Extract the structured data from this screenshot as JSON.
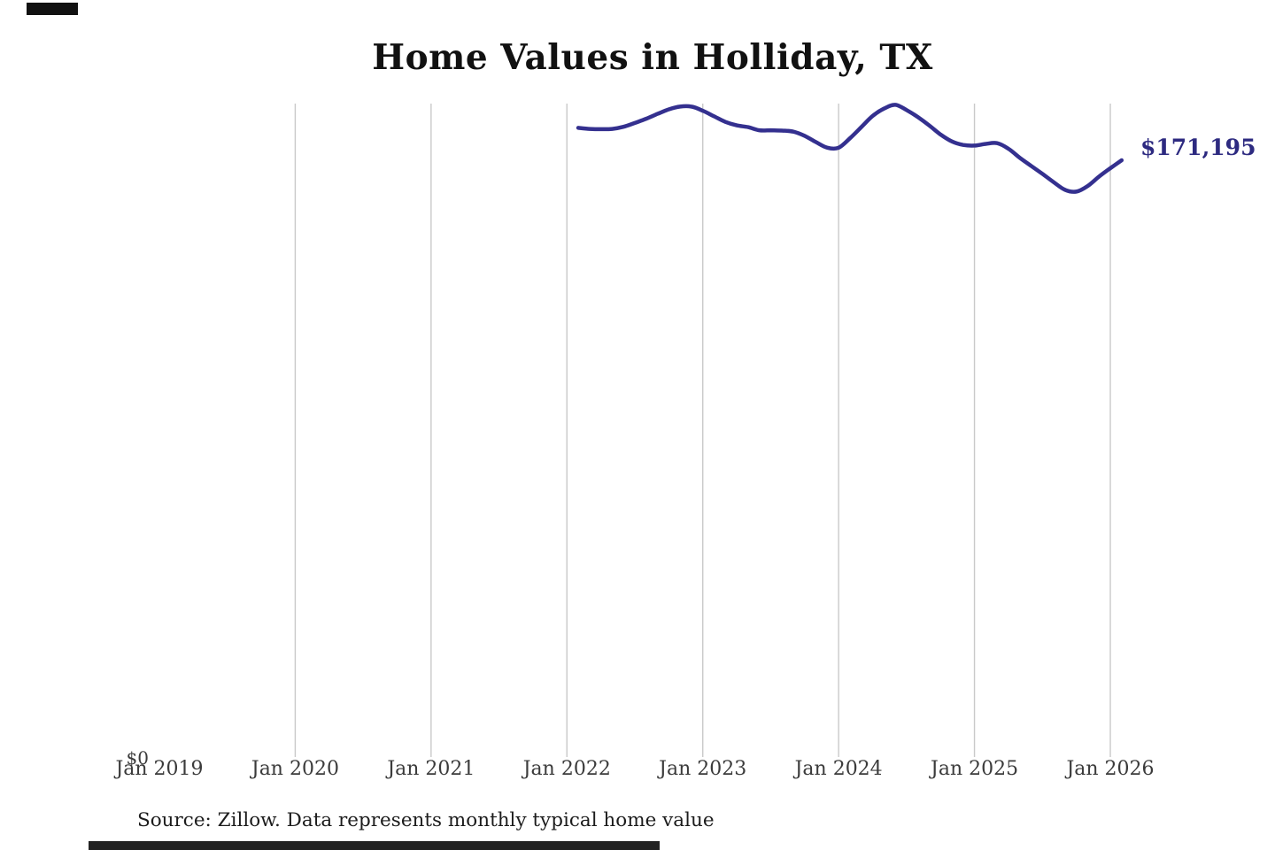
{
  "page": {
    "title": "Home Values in Holliday, TX",
    "source_note": "Source: Zillow. Data represents monthly typical home value"
  },
  "chart_data": {
    "type": "line",
    "title": "Home Values in Holliday, TX",
    "series_name": "Monthly typical home value",
    "unit": "USD",
    "x": [
      "2022-02",
      "2022-03",
      "2022-04",
      "2022-05",
      "2022-06",
      "2022-07",
      "2022-08",
      "2022-09",
      "2022-10",
      "2022-11",
      "2022-12",
      "2023-01",
      "2023-02",
      "2023-03",
      "2023-04",
      "2023-05",
      "2023-06",
      "2023-07",
      "2023-08",
      "2023-09",
      "2023-10",
      "2023-11",
      "2023-12",
      "2024-01",
      "2024-02",
      "2024-03",
      "2024-04",
      "2024-05",
      "2024-06",
      "2024-07",
      "2024-08",
      "2024-09",
      "2024-10",
      "2024-11",
      "2024-12",
      "2025-01",
      "2025-02",
      "2025-03",
      "2025-04",
      "2025-05",
      "2025-06",
      "2025-07",
      "2025-08",
      "2025-09",
      "2025-10",
      "2025-11",
      "2025-12",
      "2026-01",
      "2026-02"
    ],
    "values": [
      180500,
      180200,
      180100,
      180200,
      180800,
      181900,
      183100,
      184500,
      185800,
      186600,
      186600,
      185400,
      183800,
      182200,
      181200,
      180700,
      179800,
      179800,
      179700,
      179400,
      178200,
      176400,
      174800,
      174800,
      177500,
      180700,
      183900,
      186000,
      187100,
      185600,
      183600,
      181200,
      178600,
      176600,
      175600,
      175400,
      175900,
      176100,
      174500,
      171900,
      169600,
      167300,
      164900,
      162700,
      162200,
      163800,
      166500,
      168900,
      171195
    ],
    "x_ticks": [
      "Jan 2019",
      "Jan 2020",
      "Jan 2021",
      "Jan 2022",
      "Jan 2023",
      "Jan 2024",
      "Jan 2025",
      "Jan 2026"
    ],
    "y_zero_label": "$0",
    "end_label": "$171,195",
    "end_value": 171195,
    "ylim": [
      0,
      187452
    ],
    "grid": "vertical-year-gridlines-only",
    "legend": "none",
    "line_color": "#34308f",
    "end_label_color": "#2d2a80",
    "gridline_color": "#c9c9c9"
  },
  "artifacts": {
    "top_left_bar_color": "#111111",
    "bottom_bar_color": "#222222"
  }
}
